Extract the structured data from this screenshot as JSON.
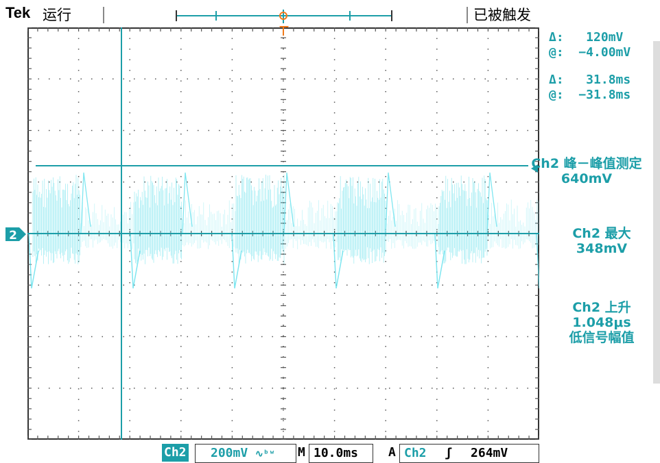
{
  "header": {
    "brand": "Tek",
    "run_state": "运行",
    "trigger_state": "已被触发"
  },
  "cursor_readouts": {
    "volt_delta": "Δ:   120mV",
    "volt_at": "@:  −4.00mV",
    "time_delta": "Δ:   31.8ms",
    "time_at": "@:  −31.8ms"
  },
  "measurements": [
    {
      "label": "Ch2 峰－峰值测定",
      "value": "640mV"
    },
    {
      "label": "Ch2 最大",
      "value": "348mV"
    },
    {
      "label": "Ch2 上升",
      "value": "1.048μs",
      "note": "低信号幅值"
    }
  ],
  "markers": {
    "trigger_glyph": "T",
    "channel_marker": "2"
  },
  "bottom_bar": {
    "channel": "Ch2",
    "scale": "200mV",
    "bw_symbol": "∿ᵇʷ",
    "timebase_label": "M",
    "timebase": "10.0ms",
    "trigger_mode": "A",
    "trigger_channel": "Ch2",
    "trigger_slope": "ʃ",
    "trigger_level": "264mV"
  },
  "colors": {
    "trace": "#5fe0ec",
    "trace_dark": "#1c9ea8",
    "trigger_marker": "#f07a1a",
    "grid_dot": "#555555"
  }
}
